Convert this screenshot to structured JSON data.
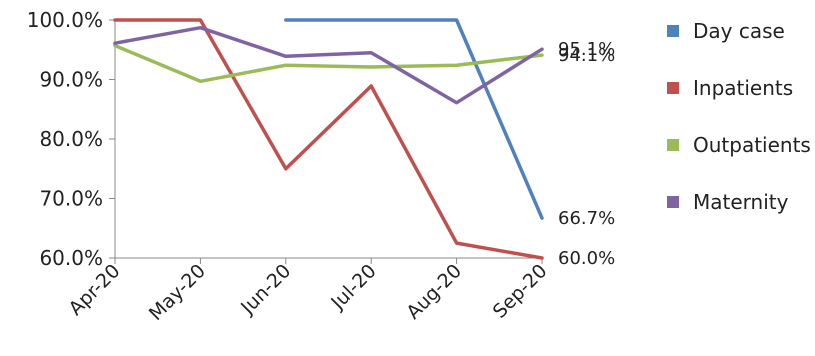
{
  "chart_data": {
    "type": "line",
    "categories": [
      "Apr-20",
      "May-20",
      "Jun-20",
      "Jul-20",
      "Aug-20",
      "Sep-20"
    ],
    "ylim": [
      60,
      100
    ],
    "yticks": [
      "100.0%",
      "90.0%",
      "80.0%",
      "70.0%",
      "60.0%"
    ],
    "grid": false,
    "legend_position": "right",
    "series": [
      {
        "name": "Day case",
        "color": "#4F81BD",
        "values": [
          null,
          null,
          100,
          100,
          100,
          66.7
        ]
      },
      {
        "name": "Inpatients",
        "color": "#C0504D",
        "values": [
          100,
          100,
          75,
          88.9,
          62.5,
          60
        ]
      },
      {
        "name": "Outpatients",
        "color": "#9BBB59",
        "values": [
          95.7,
          89.7,
          92.4,
          92.1,
          92.4,
          94.1
        ]
      },
      {
        "name": "Maternity",
        "color": "#8064A2",
        "values": [
          96.1,
          98.7,
          93.9,
          94.5,
          86.1,
          95.1
        ]
      }
    ],
    "data_labels": [
      {
        "text": "95.1%",
        "series": "Maternity",
        "category": "Sep-20"
      },
      {
        "text": "94.1%",
        "series": "Outpatients",
        "category": "Sep-20"
      },
      {
        "text": "66.7%",
        "series": "Day case",
        "category": "Sep-20"
      },
      {
        "text": "60.0%",
        "series": "Inpatients",
        "category": "Sep-20"
      }
    ]
  }
}
